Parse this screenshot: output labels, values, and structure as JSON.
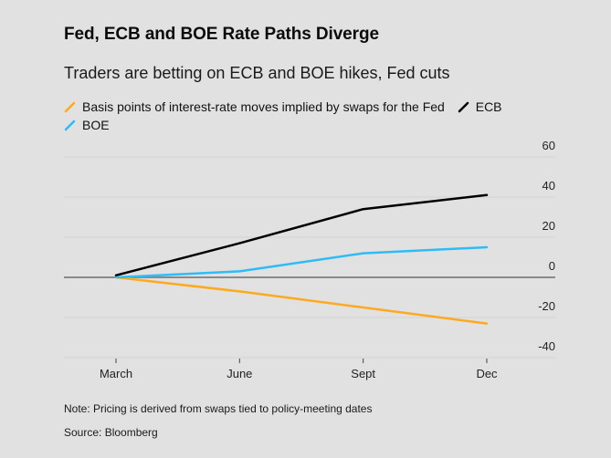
{
  "header": {
    "title": "Fed, ECB and BOE Rate Paths Diverge",
    "subtitle": "Traders are betting on ECB and BOE hikes, Fed cuts"
  },
  "legend": [
    {
      "label": "Basis points of interest-rate moves implied by swaps for the Fed",
      "color": "#ffa91f"
    },
    {
      "label": "ECB",
      "color": "#000000"
    },
    {
      "label": "BOE",
      "color": "#2ebcf6"
    }
  ],
  "footer": {
    "note": "Note: Pricing is derived from swaps tied to policy-meeting dates",
    "source": "Source: Bloomberg"
  },
  "chart_data": {
    "type": "line",
    "title": "Fed, ECB and BOE Rate Paths Diverge",
    "subtitle": "Traders are betting on ECB and BOE hikes, Fed cuts",
    "xlabel": "",
    "ylabel": "Basis points",
    "categories": [
      "March",
      "June",
      "Sept",
      "Dec"
    ],
    "ylim": [
      -45,
      60
    ],
    "yticks": [
      60,
      40,
      20,
      0,
      -20,
      -40
    ],
    "y_axis_side": "right",
    "grid": true,
    "legend_position": "top-left",
    "series": [
      {
        "name": "Fed",
        "color": "#ffa91f",
        "values": [
          0,
          -7,
          -15,
          -23
        ]
      },
      {
        "name": "ECB",
        "color": "#000000",
        "values": [
          1,
          17,
          34,
          41
        ]
      },
      {
        "name": "BOE",
        "color": "#2ebcf6",
        "values": [
          0,
          3,
          12,
          15
        ]
      }
    ]
  }
}
